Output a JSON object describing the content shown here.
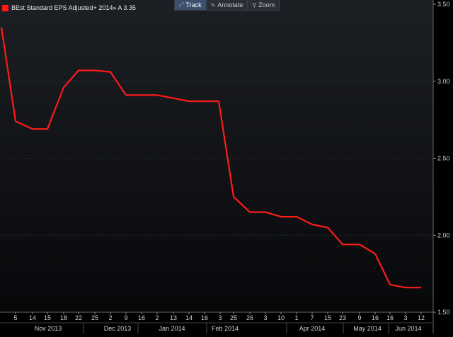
{
  "legend": {
    "label": "BEst Standard EPS Adjusted+ 2014» A 3.35",
    "color": "#ff1a1a"
  },
  "toolbar": {
    "track": {
      "label": "Track",
      "icon": "track-icon"
    },
    "annotate": {
      "label": "Annotate",
      "icon": "pencil-icon"
    },
    "zoom": {
      "label": "Zoom",
      "icon": "magnifier-icon"
    }
  },
  "chart_data": {
    "type": "line",
    "title": "",
    "xlabel": "",
    "ylabel": "",
    "ylim": [
      1.5,
      3.5
    ],
    "yticks": [
      "3.50",
      "3.00",
      "2.50",
      "2.00",
      "1.50"
    ],
    "grid": "horizontal-dotted",
    "y_axis_side": "right",
    "x_day_labels": [
      "5",
      "14",
      "15",
      "18",
      "22",
      "25",
      "2",
      "9",
      "16",
      "2",
      "13",
      "14",
      "16",
      "3",
      "25",
      "26",
      "3",
      "10",
      "1",
      "7",
      "15",
      "23",
      "9",
      "16",
      "16",
      "3",
      "12"
    ],
    "x_month_labels": [
      "Nov 2013",
      "Dec 2013",
      "Jan 2014",
      "Feb 2014",
      "Apr 2014",
      "May 2014",
      "Jun 2014"
    ],
    "series": [
      {
        "name": "BEst Standard EPS Adjusted+ 2014» A",
        "color": "#ff1a1a",
        "values": [
          3.35,
          2.74,
          2.69,
          2.69,
          2.96,
          3.07,
          3.07,
          3.06,
          2.91,
          2.91,
          2.91,
          2.89,
          2.87,
          2.87,
          2.87,
          2.25,
          2.15,
          2.15,
          2.12,
          2.12,
          2.07,
          2.05,
          1.94,
          1.94,
          1.88,
          1.68,
          1.66,
          1.66
        ]
      }
    ]
  }
}
